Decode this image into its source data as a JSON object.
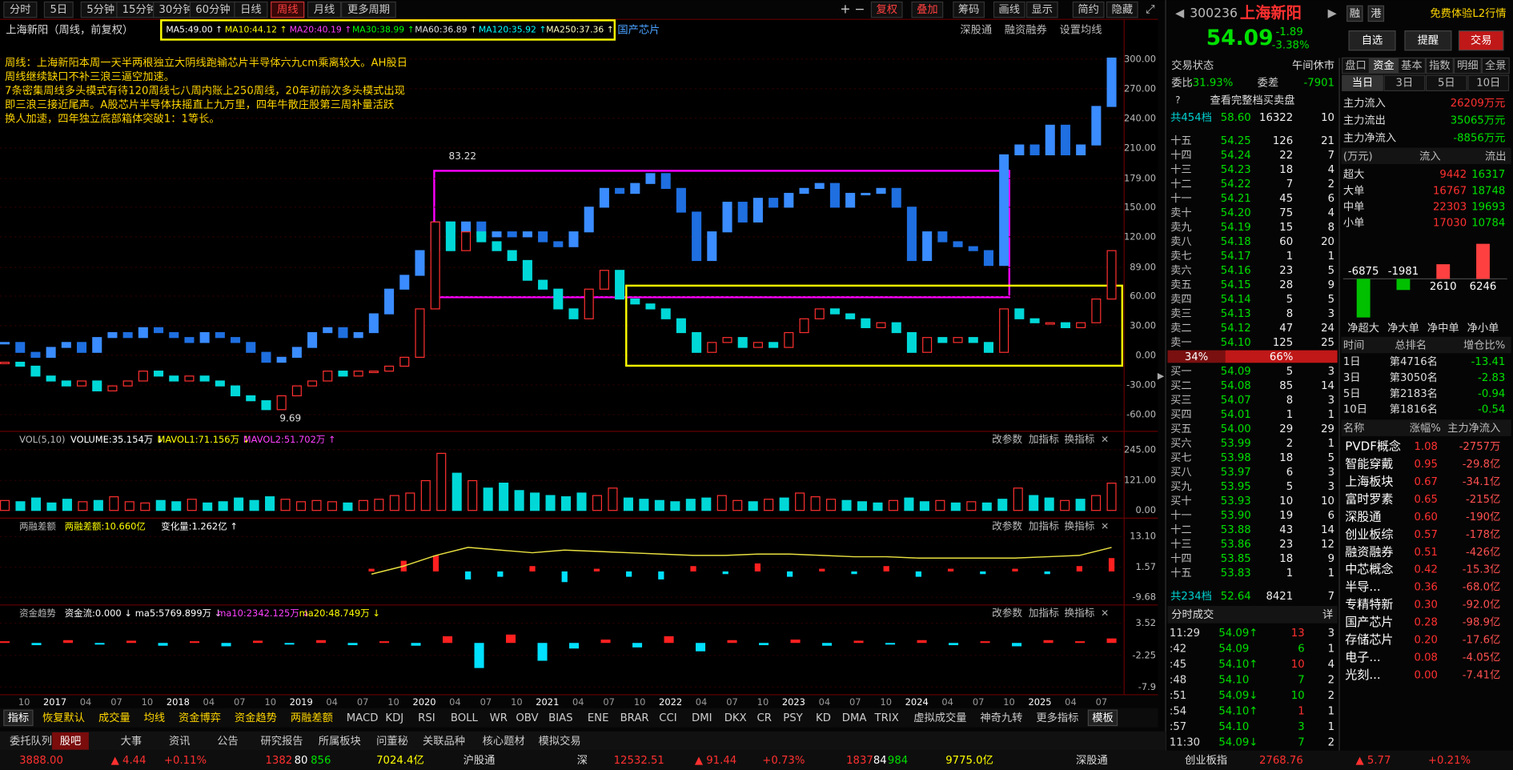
{
  "toolbar": {
    "periods": [
      "分时",
      "5日",
      "5分钟",
      "15分钟",
      "30分钟",
      "60分钟",
      "日线",
      "周线",
      "月线",
      "更多周期"
    ],
    "active": 7,
    "tools": [
      "复权",
      "叠加",
      "筹码",
      "画线",
      "显示",
      "简约",
      "隐藏"
    ]
  },
  "chart": {
    "title": "上海新阳（周线，前复权）",
    "ma": [
      {
        "text": "MA5:49.00 ↑",
        "color": "#ffffff"
      },
      {
        "text": "MA10:44.12 ↑",
        "color": "#ffff00"
      },
      {
        "text": "MA20:40.19 ↑",
        "color": "#ff40ff"
      },
      {
        "text": "MA30:38.99 ↑",
        "color": "#00ff00"
      },
      {
        "text": "MA60:36.89 ↑",
        "color": "#e0e0e0"
      },
      {
        "text": "MA120:35.92 ↑",
        "color": "#00ffff"
      },
      {
        "text": "MA250:37.36 ↑",
        "color": "#ffffc0"
      }
    ],
    "tag": "国产芯片",
    "links": [
      "深股通",
      "融资融券",
      "设置均线"
    ],
    "notes": [
      "周线：上海新阳本周一天半两根独立大阴线跑输芯片半导体六九cm乘离较大。AH股日",
      "周线继续缺口不补三浪三逼空加速。",
      "7条密集周线多头模式有待120周线七八周内账上250周线，20年初前次多头模式出现",
      "即三浪三接近尾声。A股芯片半导体扶摇直上九万里，四年牛散庄股第三周补量活跃",
      "换人加速，四年独立底部箱体突破1：1等长。"
    ],
    "high_label": "83.22",
    "low_label": "9.69",
    "ylim": [
      -75,
      306
    ],
    "yticks": [
      {
        "value": 300,
        "label": "300.00"
      },
      {
        "value": 270,
        "label": "270.00"
      },
      {
        "value": 240,
        "label": "240.00"
      },
      {
        "value": 210,
        "label": "210.00"
      },
      {
        "value": 179,
        "label": "179.00"
      },
      {
        "value": 150,
        "label": "150.00"
      },
      {
        "value": 120,
        "label": "120.00"
      },
      {
        "value": 89,
        "label": "89.00"
      },
      {
        "value": 60,
        "label": "60.00"
      },
      {
        "value": 30,
        "label": "30.00"
      },
      {
        "value": 0,
        "label": "0.00"
      },
      {
        "value": -30,
        "label": "-30.00"
      },
      {
        "value": -60,
        "label": "-60.00"
      }
    ],
    "overlay": [
      13,
      3,
      -2,
      8,
      13,
      3,
      18,
      23,
      18,
      28,
      23,
      18,
      13,
      23,
      18,
      13,
      3,
      -7,
      -2,
      8,
      23,
      28,
      18,
      23,
      42,
      67,
      81,
      106,
      135,
      125,
      135,
      120,
      125,
      120,
      125,
      115,
      110,
      125,
      150,
      169,
      164,
      174,
      184,
      169,
      145,
      96,
      125,
      155,
      135,
      159,
      150,
      164,
      169,
      174,
      150,
      164,
      164,
      169,
      150,
      96,
      125,
      115,
      110,
      106,
      91,
      203,
      213,
      203,
      233,
      203,
      213,
      252,
      301
    ],
    "stock": [
      -7,
      -11,
      -21,
      -26,
      -31,
      -26,
      -36,
      -31,
      -26,
      -16,
      -21,
      -26,
      -21,
      -26,
      -31,
      -41,
      -46,
      -55,
      -41,
      -31,
      -26,
      -16,
      -21,
      -16,
      -16,
      -11,
      -2,
      47,
      135,
      106,
      125,
      115,
      106,
      96,
      76,
      67,
      47,
      37,
      67,
      86,
      57,
      52,
      47,
      37,
      23,
      3,
      13,
      18,
      8,
      13,
      8,
      23,
      37,
      47,
      42,
      37,
      28,
      33,
      23,
      3,
      18,
      13,
      18,
      13,
      3,
      47,
      37,
      33,
      33,
      28,
      33,
      57,
      106
    ],
    "xlabels": [
      "10",
      "2017",
      "04",
      "07",
      "10",
      "2018",
      "04",
      "07",
      "10",
      "2019",
      "04",
      "07",
      "10",
      "2020",
      "04",
      "07",
      "10",
      "2021",
      "04",
      "07",
      "10",
      "2022",
      "04",
      "07",
      "10",
      "2023",
      "04",
      "07",
      "10",
      "2024",
      "04",
      "07",
      "10",
      "2025",
      "04",
      "07"
    ]
  },
  "volume": {
    "title": "VOL(5,10)",
    "items": [
      {
        "text": "VOLUME:35.154万 ↓",
        "color": "#ffffff"
      },
      {
        "text": "MAVOL1:71.156万 ↓",
        "color": "#ffff00"
      },
      {
        "text": "MAVOL2:51.702万 ↑",
        "color": "#ff40ff"
      }
    ],
    "ylim": [
      0,
      245
    ],
    "yticks": [
      {
        "value": 245,
        "label": "245.00"
      },
      {
        "value": 121,
        "label": "121.00"
      },
      {
        "value": 0,
        "label": "0.00"
      }
    ],
    "values": [
      40,
      35,
      50,
      30,
      45,
      35,
      40,
      55,
      35,
      30,
      40,
      35,
      45,
      30,
      35,
      50,
      40,
      55,
      45,
      35,
      40,
      35,
      30,
      40,
      45,
      60,
      70,
      120,
      230,
      150,
      120,
      90,
      110,
      80,
      70,
      60,
      55,
      70,
      60,
      90,
      50,
      45,
      40,
      35,
      45,
      50,
      60,
      40,
      35,
      45,
      50,
      70,
      55,
      45,
      40,
      35,
      30,
      40,
      50,
      35,
      40,
      30,
      35,
      30,
      45,
      90,
      60,
      50,
      40,
      45,
      60,
      110
    ]
  },
  "margin": {
    "title": "两融差额",
    "items": [
      {
        "text": "两融差额:10.660亿",
        "color": "#ffff00"
      },
      {
        "text": "变化量:1.262亿 ↑",
        "color": "#ffffff"
      }
    ],
    "ylim": [
      -9.68,
      13.1
    ],
    "yticks": [
      {
        "value": 13.1,
        "label": "13.10"
      },
      1.57,
      -9.68
    ],
    "line": [
      -1,
      2,
      6,
      9,
      8,
      7,
      8,
      7.5,
      7,
      6.5,
      6,
      6,
      6.5,
      6.5,
      6,
      5.5,
      5.5,
      5,
      5,
      5,
      5,
      5.5,
      6,
      9
    ],
    "bars": [
      1,
      4,
      6,
      -3,
      -2,
      2,
      -4,
      1,
      -2,
      -3,
      2,
      -1,
      3,
      -2,
      1,
      -1,
      2,
      -2,
      1,
      -1,
      1,
      -1,
      2,
      5
    ]
  },
  "fund": {
    "title": "资金趋势",
    "items": [
      {
        "text": "资金流:0.000 ↓",
        "color": "#ffffff"
      },
      {
        "text": "ma5:5769.899万 ↓",
        "color": "#ffffff"
      },
      {
        "text": "ma10:2342.125万 ↓",
        "color": "#ff40ff"
      },
      {
        "text": "ma20:48.749万 ↓",
        "color": "#ffff00"
      }
    ],
    "ylim": [
      -7.9,
      3.52
    ],
    "yticks": [
      3.52,
      -2.25,
      -7.9
    ],
    "bars": [
      0.3,
      -0.4,
      0.5,
      -0.3,
      0.4,
      -0.5,
      0.3,
      -0.6,
      0.4,
      -0.3,
      0.5,
      -0.4,
      0.3,
      -0.5,
      1.2,
      -4.5,
      1.5,
      -3.2,
      -1,
      0.6,
      -0.8,
      1.2,
      -1.5,
      0.5,
      -0.4,
      0.6,
      -0.5,
      0.4,
      -0.3,
      0.5,
      -0.4,
      0.3,
      -0.6,
      0.5,
      0.3,
      0.8
    ]
  },
  "panel_links": [
    "改参数",
    "加指标",
    "换指标"
  ],
  "indicators": [
    "指标",
    "恢复默认",
    "成交量",
    "均线",
    "资金博弈",
    "资金趋势",
    "两融差额",
    "MACD",
    "KDJ",
    "RSI",
    "BOLL",
    "WR",
    "OBV",
    "BIAS",
    "ENE",
    "BRAR",
    "CCI",
    "DMI",
    "DKX",
    "CR",
    "PSY",
    "KD",
    "DMA",
    "TRIX",
    "虚拟成交量",
    "神奇九转",
    "更多指标",
    "模板"
  ],
  "tabs": [
    "委托队列",
    "股吧",
    "大事",
    "资讯",
    "公告",
    "研究报告",
    "所属板块",
    "问董秘",
    "关联品种",
    "核心题材",
    "模拟交易"
  ],
  "active_tab": 1,
  "status": [
    {
      "t": "3888.00",
      "c": "#ff3030"
    },
    {
      "t": "▲ 4.44",
      "c": "#ff3030"
    },
    {
      "t": "+0.11%",
      "c": "#ff3030"
    },
    {
      "t": "1382",
      "c": "#ff3030"
    },
    {
      "t": "80",
      "c": "#ffffff"
    },
    {
      "t": "856",
      "c": "#00e000"
    },
    {
      "t": "7024.4亿",
      "c": "#ffff00"
    },
    {
      "t": "沪股通",
      "c": "#dddddd"
    },
    {
      "t": "深",
      "c": "#dddddd"
    },
    {
      "t": "12532.51",
      "c": "#ff3030"
    },
    {
      "t": "▲ 91.44",
      "c": "#ff3030"
    },
    {
      "t": "+0.73%",
      "c": "#ff3030"
    },
    {
      "t": "1837",
      "c": "#ff3030"
    },
    {
      "t": "84",
      "c": "#ffffff"
    },
    {
      "t": "984",
      "c": "#00e000"
    },
    {
      "t": "9775.0亿",
      "c": "#ffff00"
    },
    {
      "t": "深股通",
      "c": "#dddddd"
    },
    {
      "t": "创业板指",
      "c": "#dddddd"
    },
    {
      "t": "2768.76",
      "c": "#ff3030"
    },
    {
      "t": "▲ 5.77",
      "c": "#ff3030"
    },
    {
      "t": "+0.21%",
      "c": "#ff3030"
    }
  ],
  "quote": {
    "code": "300236",
    "name": "上海新阳",
    "badges": [
      "融",
      "港"
    ],
    "promo": "免费体验L2行情",
    "price": "54.09",
    "change": "-1.89",
    "pct": "-3.38%",
    "buttons": [
      "自选",
      "提醒",
      "交易"
    ],
    "status_label": "交易状态",
    "status": "午间休市",
    "wb_label": "委比",
    "wb": "-31.93%",
    "wc_label": "委差",
    "wc": "-7901",
    "full": "查看完整档买卖盘"
  },
  "book": {
    "sell_total": [
      "共454档",
      "58.60",
      "16322",
      "10"
    ],
    "sell": [
      [
        "十五",
        "54.25",
        "126",
        "21"
      ],
      [
        "十四",
        "54.24",
        "22",
        "7"
      ],
      [
        "十三",
        "54.23",
        "18",
        "4"
      ],
      [
        "十二",
        "54.22",
        "7",
        "2"
      ],
      [
        "十一",
        "54.21",
        "45",
        "6"
      ],
      [
        "卖十",
        "54.20",
        "75",
        "4"
      ],
      [
        "卖九",
        "54.19",
        "15",
        "8"
      ],
      [
        "卖八",
        "54.18",
        "60",
        "20"
      ],
      [
        "卖七",
        "54.17",
        "1",
        "1"
      ],
      [
        "卖六",
        "54.16",
        "23",
        "5"
      ],
      [
        "卖五",
        "54.15",
        "28",
        "9"
      ],
      [
        "卖四",
        "54.14",
        "5",
        "5"
      ],
      [
        "卖三",
        "54.13",
        "8",
        "3"
      ],
      [
        "卖二",
        "54.12",
        "47",
        "24"
      ],
      [
        "卖一",
        "54.10",
        "125",
        "25"
      ]
    ],
    "ratio": [
      {
        "value": 34,
        "label": "34%"
      },
      {
        "value": 66,
        "label": "66%"
      }
    ],
    "buy": [
      [
        "买一",
        "54.09",
        "5",
        "3"
      ],
      [
        "买二",
        "54.08",
        "85",
        "14"
      ],
      [
        "买三",
        "54.07",
        "8",
        "3"
      ],
      [
        "买四",
        "54.01",
        "1",
        "1"
      ],
      [
        "买五",
        "54.00",
        "29",
        "29"
      ],
      [
        "买六",
        "53.99",
        "2",
        "1"
      ],
      [
        "买七",
        "53.98",
        "18",
        "5"
      ],
      [
        "买八",
        "53.97",
        "6",
        "3"
      ],
      [
        "买九",
        "53.95",
        "5",
        "3"
      ],
      [
        "买十",
        "53.93",
        "10",
        "10"
      ],
      [
        "十一",
        "53.90",
        "19",
        "6"
      ],
      [
        "十二",
        "53.88",
        "43",
        "14"
      ],
      [
        "十三",
        "53.86",
        "23",
        "12"
      ],
      [
        "十四",
        "53.85",
        "18",
        "9"
      ],
      [
        "十五",
        "53.83",
        "1",
        "1"
      ]
    ],
    "buy_total": [
      "共234档",
      "52.64",
      "8421",
      "7"
    ]
  },
  "trades": {
    "title": "分时成交",
    "detail": "详",
    "rows": [
      [
        "11:29",
        "54.09↑",
        "13",
        "3"
      ],
      [
        ":42",
        "54.09",
        "6",
        "1"
      ],
      [
        ":45",
        "54.10↑",
        "10",
        "4"
      ],
      [
        ":48",
        "54.10",
        "7",
        "2"
      ],
      [
        ":51",
        "54.09↓",
        "10",
        "2"
      ],
      [
        ":54",
        "54.10↑",
        "1",
        "1"
      ],
      [
        ":57",
        "54.10",
        "3",
        "1"
      ],
      [
        "11:30",
        "54.09↓",
        "7",
        "2"
      ]
    ]
  },
  "flow": {
    "tabs": [
      "盘口",
      "资金",
      "基本",
      "指数",
      "明细",
      "全景"
    ],
    "active": 1,
    "periods": [
      "当日",
      "3日",
      "5日",
      "10日"
    ],
    "period_active": 0,
    "main": [
      [
        "主力流入",
        "26209万元"
      ],
      [
        "主力流出",
        "35065万元"
      ],
      [
        "主力净流入",
        "-8856万元"
      ]
    ],
    "head": [
      "(万元)",
      "流入",
      "流出"
    ],
    "rows": [
      [
        "超大",
        "9442",
        "16317"
      ],
      [
        "大单",
        "16767",
        "18748"
      ],
      [
        "中单",
        "22303",
        "19693"
      ],
      [
        "小单",
        "17030",
        "10784"
      ]
    ],
    "net": {
      "values": [
        -6875,
        -1981,
        2610,
        6246
      ],
      "labels": [
        "净超大",
        "净大单",
        "净中单",
        "净小单"
      ]
    },
    "rank_head": [
      "时间",
      "总排名",
      "增仓比%"
    ],
    "rank": [
      [
        "1日",
        "第4716名",
        "-13.41"
      ],
      [
        "3日",
        "第3050名",
        "-2.83"
      ],
      [
        "5日",
        "第2183名",
        "-0.94"
      ],
      [
        "10日",
        "第1816名",
        "-0.54"
      ]
    ],
    "sector_head": [
      "名称",
      "涨幅%",
      "主力净流入"
    ],
    "sectors": [
      [
        "PVDF概念",
        "1.08",
        "-2757万"
      ],
      [
        "智能穿戴",
        "0.95",
        "-29.8亿"
      ],
      [
        "上海板块",
        "0.67",
        "-34.1亿"
      ],
      [
        "富时罗素",
        "0.65",
        "-215亿"
      ],
      [
        "深股通",
        "0.60",
        "-190亿"
      ],
      [
        "创业板综",
        "0.57",
        "-178亿"
      ],
      [
        "融资融券",
        "0.51",
        "-426亿"
      ],
      [
        "中芯概念",
        "0.42",
        "-15.3亿"
      ],
      [
        "半导...",
        "0.36",
        "-68.0亿"
      ],
      [
        "专精特新",
        "0.30",
        "-92.0亿"
      ],
      [
        "国产芯片",
        "0.28",
        "-98.9亿"
      ],
      [
        "存储芯片",
        "0.20",
        "-17.6亿"
      ],
      [
        "电子...",
        "0.08",
        "-4.05亿"
      ],
      [
        "光刻...",
        "0.00",
        "-7.41亿"
      ]
    ]
  }
}
